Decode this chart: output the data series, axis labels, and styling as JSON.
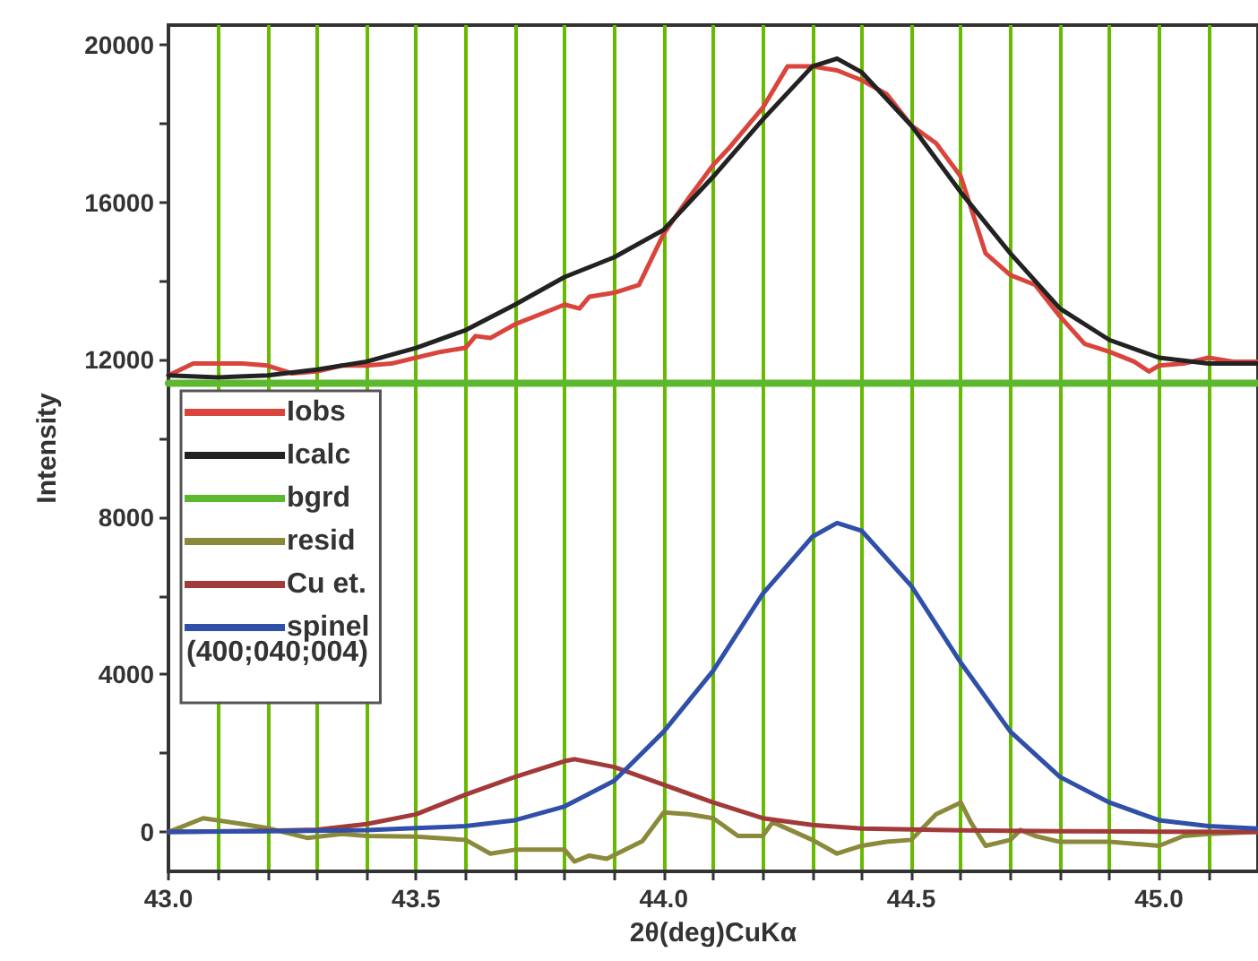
{
  "chart_data": {
    "type": "line",
    "xlabel": "2θ(deg)CuKα",
    "ylabel": "Intensity",
    "xlim": [
      43.0,
      45.2
    ],
    "ylim": [
      -1000,
      20500
    ],
    "xticks": [
      {
        "value": 43,
        "label": "43.0"
      },
      {
        "value": 43.1,
        "label": null
      },
      {
        "value": 43.2,
        "label": null
      },
      {
        "value": 43.3,
        "label": null
      },
      {
        "value": 43.4,
        "label": null
      },
      43.5,
      {
        "value": 43.6,
        "label": null
      },
      {
        "value": 43.7,
        "label": null
      },
      {
        "value": 43.8,
        "label": null
      },
      {
        "value": 43.9,
        "label": null
      },
      {
        "value": 44,
        "label": "44.0"
      },
      {
        "value": 44.1,
        "label": null
      },
      {
        "value": 44.2,
        "label": null
      },
      {
        "value": 44.3,
        "label": null
      },
      {
        "value": 44.4,
        "label": null
      },
      44.5,
      {
        "value": 44.6,
        "label": null
      },
      {
        "value": 44.7,
        "label": null
      },
      {
        "value": 44.8,
        "label": null
      },
      {
        "value": 44.9,
        "label": null
      },
      {
        "value": 45,
        "label": "45.0"
      },
      {
        "value": 45.1,
        "label": null
      }
    ],
    "yticks": [
      0,
      {
        "value": 2000,
        "label": null
      },
      4000,
      {
        "value": 6000,
        "label": null
      },
      8000,
      {
        "value": 10000,
        "label": null
      },
      12000,
      {
        "value": 14000,
        "label": null
      },
      16000,
      {
        "value": 18000,
        "label": null
      },
      20000
    ],
    "grid": "x",
    "legend": "left",
    "marker": "none",
    "line_style": "solid",
    "annotations": [
      "(400;040;004)"
    ],
    "series": [
      {
        "name": "Iobs",
        "color": "#d9453c",
        "x": [
          43.0,
          43.05,
          43.1,
          43.15,
          43.2,
          43.25,
          43.3,
          43.35,
          43.4,
          43.45,
          43.5,
          43.55,
          43.6,
          43.62,
          43.65,
          43.7,
          43.75,
          43.8,
          43.83,
          43.85,
          43.9,
          43.95,
          44.0,
          44.05,
          44.1,
          44.13,
          44.2,
          44.25,
          44.3,
          44.35,
          44.4,
          44.45,
          44.5,
          44.55,
          44.6,
          44.65,
          44.7,
          44.75,
          44.8,
          44.85,
          44.9,
          44.95,
          44.98,
          45.0,
          45.05,
          45.1,
          45.15,
          45.2
        ],
        "values": [
          11600,
          11900,
          11900,
          11900,
          11850,
          11650,
          11700,
          11850,
          11850,
          11900,
          12050,
          12200,
          12300,
          12600,
          12550,
          12900,
          13150,
          13400,
          13300,
          13600,
          13700,
          13900,
          15200,
          16100,
          16950,
          17350,
          18400,
          19450,
          19450,
          19350,
          19100,
          18750,
          17950,
          17500,
          16650,
          14700,
          14150,
          13900,
          13100,
          12400,
          12200,
          11950,
          11700,
          11850,
          11900,
          12050,
          11950,
          11950
        ]
      },
      {
        "name": "Icalc",
        "color": "#222222",
        "x": [
          43.0,
          43.1,
          43.2,
          43.3,
          43.4,
          43.5,
          43.6,
          43.7,
          43.8,
          43.9,
          44.0,
          44.1,
          44.2,
          44.3,
          44.35,
          44.4,
          44.5,
          44.6,
          44.7,
          44.8,
          44.9,
          45.0,
          45.1,
          45.2
        ],
        "values": [
          11600,
          11550,
          11600,
          11750,
          11950,
          12300,
          12750,
          13400,
          14100,
          14600,
          15300,
          16650,
          18100,
          19450,
          19650,
          19300,
          17950,
          16250,
          14700,
          13300,
          12500,
          12050,
          11900,
          11900
        ]
      },
      {
        "name": "bgrd",
        "color": "#5cb82e",
        "x": [
          43.0,
          45.2
        ],
        "values": [
          11400,
          11400
        ]
      },
      {
        "name": "resid",
        "color": "#8a8a3a",
        "x": [
          43.0,
          43.07,
          43.15,
          43.2,
          43.28,
          43.35,
          43.4,
          43.5,
          43.6,
          43.65,
          43.7,
          43.8,
          43.82,
          43.85,
          43.885,
          43.957,
          44.0,
          44.05,
          44.1,
          44.15,
          44.2,
          44.22,
          44.3,
          44.35,
          44.4,
          44.45,
          44.5,
          44.55,
          44.6,
          44.62,
          44.65,
          44.7,
          44.72,
          44.75,
          44.8,
          44.9,
          45.0,
          45.05,
          45.1,
          45.2
        ],
        "values": [
          0,
          350,
          200,
          100,
          -150,
          -50,
          -100,
          -120,
          -200,
          -550,
          -450,
          -450,
          -750,
          -600,
          -680,
          -230,
          500,
          450,
          350,
          -100,
          -100,
          250,
          -200,
          -550,
          -350,
          -250,
          -200,
          450,
          750,
          250,
          -350,
          -200,
          50,
          -100,
          -250,
          -250,
          -350,
          -100,
          -50,
          0
        ]
      },
      {
        "name": "Cu et.",
        "color": "#a33a3a",
        "x": [
          43.0,
          43.2,
          43.3,
          43.4,
          43.5,
          43.6,
          43.7,
          43.8,
          43.82,
          43.9,
          44.0,
          44.1,
          44.2,
          44.3,
          44.4,
          44.6,
          44.8,
          45.0,
          45.2
        ],
        "values": [
          0,
          30,
          60,
          200,
          450,
          950,
          1400,
          1800,
          1850,
          1650,
          1200,
          750,
          350,
          180,
          90,
          40,
          20,
          10,
          0
        ]
      },
      {
        "name": "spinel",
        "color": "#2f4fa8",
        "x": [
          43.0,
          43.2,
          43.4,
          43.5,
          43.6,
          43.7,
          43.8,
          43.9,
          44.0,
          44.1,
          44.2,
          44.3,
          44.35,
          44.4,
          44.5,
          44.6,
          44.7,
          44.8,
          44.9,
          45.0,
          45.1,
          45.2
        ],
        "values": [
          0,
          20,
          50,
          100,
          150,
          300,
          650,
          1300,
          2550,
          4100,
          6050,
          7500,
          7850,
          7650,
          6250,
          4300,
          2550,
          1400,
          750,
          300,
          150,
          90
        ]
      }
    ]
  }
}
